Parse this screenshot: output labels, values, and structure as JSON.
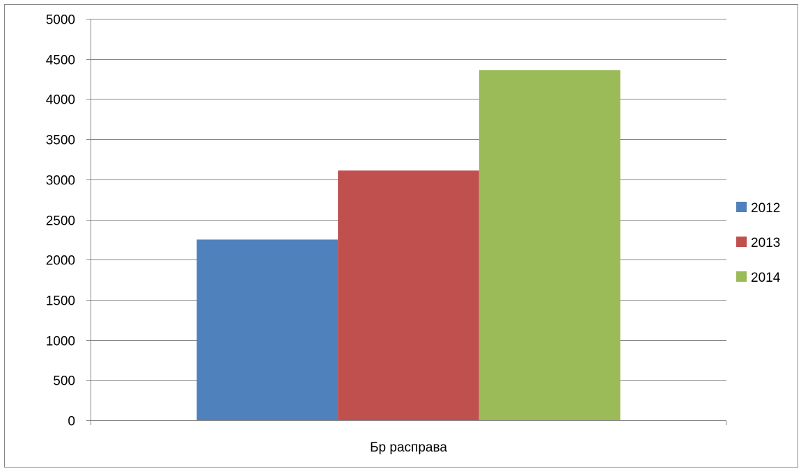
{
  "chart_data": {
    "type": "bar",
    "title": "",
    "xlabel": "",
    "ylabel": "",
    "categories": [
      "Бр расправа"
    ],
    "series": [
      {
        "name": "2012",
        "values": [
          2250
        ],
        "color": "#4F81BD"
      },
      {
        "name": "2013",
        "values": [
          3110
        ],
        "color": "#C0504D"
      },
      {
        "name": "2014",
        "values": [
          4360
        ],
        "color": "#9BBB59"
      }
    ],
    "ylim": [
      0,
      5000
    ],
    "yticks": [
      0,
      500,
      1000,
      1500,
      2000,
      2500,
      3000,
      3500,
      4000,
      4500,
      5000
    ],
    "grid": true,
    "legend_position": "right",
    "gridline_color": "#868686",
    "axis_color": "#868686"
  }
}
